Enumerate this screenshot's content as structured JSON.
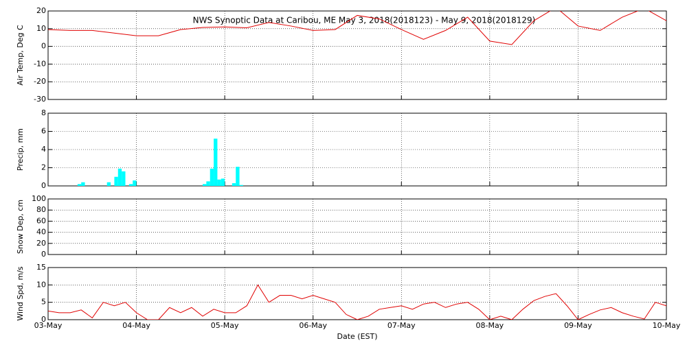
{
  "chart_data": [
    {
      "type": "line",
      "title": "NWS Synoptic Data at Caribou, ME   May  3, 2018(2018123) - May  9, 2018(2018129)",
      "ylabel": "Air Temp, Deg C",
      "color": "#e00000",
      "xlim": [
        0,
        168
      ],
      "ylim": [
        -30,
        20
      ],
      "yticks": [
        -30,
        -20,
        -10,
        0,
        10,
        20
      ],
      "x": [
        0,
        6,
        12,
        18,
        24,
        30,
        36,
        42,
        48,
        54,
        60,
        66,
        72,
        78,
        84,
        90,
        96,
        102,
        108,
        114,
        120,
        126,
        132,
        138,
        144,
        150,
        156,
        162,
        168
      ],
      "values": [
        9.5,
        9,
        9,
        7.5,
        6,
        6,
        9.5,
        10.7,
        11,
        10.5,
        13.5,
        11.5,
        9,
        9.5,
        17.5,
        15.5,
        9.5,
        4,
        9,
        16.5,
        3,
        1,
        14.5,
        22,
        11.5,
        9,
        16.5,
        21.5,
        14.5
      ]
    },
    {
      "type": "bar",
      "ylabel": "Precip, mm",
      "color": "#00ffff",
      "xlim": [
        0,
        168
      ],
      "ylim": [
        0,
        8
      ],
      "yticks": [
        0,
        2,
        4,
        6,
        8
      ],
      "x": [
        8,
        9,
        16,
        18,
        19,
        20,
        22,
        23,
        42,
        43,
        44,
        45,
        46,
        47,
        50,
        51,
        52
      ],
      "values": [
        0.2,
        0.4,
        0.4,
        1.0,
        1.9,
        1.6,
        0.2,
        0.6,
        0.2,
        0.5,
        1.9,
        5.2,
        0.7,
        0.8,
        0.3,
        2.1,
        0.1
      ]
    },
    {
      "type": "line",
      "ylabel": "Snow Dep, cm",
      "color": "#e00000",
      "xlim": [
        0,
        168
      ],
      "ylim": [
        0,
        100
      ],
      "yticks": [
        0,
        20,
        40,
        60,
        80,
        100
      ],
      "x": [],
      "values": []
    },
    {
      "type": "line",
      "ylabel": "Wind Spd, m/s",
      "xlabel": "Date (EST)",
      "color": "#e00000",
      "xlim": [
        0,
        168
      ],
      "ylim": [
        0,
        15
      ],
      "yticks": [
        0,
        5,
        10,
        15
      ],
      "xticks": [
        {
          "value": 0,
          "label": "03-May"
        },
        {
          "value": 24,
          "label": "04-May"
        },
        {
          "value": 48,
          "label": "05-May"
        },
        {
          "value": 72,
          "label": "06-May"
        },
        {
          "value": 96,
          "label": "07-May"
        },
        {
          "value": 120,
          "label": "08-May"
        },
        {
          "value": 144,
          "label": "09-May"
        },
        {
          "value": 168,
          "label": "10-May"
        }
      ],
      "x": [
        0,
        3,
        6,
        9,
        12,
        15,
        18,
        21,
        24,
        27,
        30,
        33,
        36,
        39,
        42,
        45,
        48,
        51,
        54,
        57,
        60,
        63,
        66,
        69,
        72,
        75,
        78,
        81,
        84,
        87,
        90,
        93,
        96,
        99,
        102,
        105,
        108,
        111,
        114,
        117,
        120,
        123,
        126,
        129,
        132,
        135,
        138,
        141,
        144,
        147,
        150,
        153,
        156,
        159,
        162,
        165,
        168
      ],
      "values": [
        2.5,
        2,
        2,
        2.8,
        0.5,
        5,
        4,
        5,
        2,
        0,
        0,
        3.5,
        2,
        3.5,
        1,
        3,
        2,
        2,
        4,
        10,
        5,
        7,
        7,
        6,
        7,
        6,
        5,
        1.5,
        0,
        1,
        3,
        3.5,
        4,
        3,
        4.5,
        5,
        3.5,
        4.5,
        5,
        3,
        0,
        1,
        0,
        3,
        5.5,
        6.7,
        7.5,
        4,
        0,
        1.5,
        2.8,
        3.5,
        2,
        1,
        0.2,
        5,
        4
      ]
    }
  ]
}
